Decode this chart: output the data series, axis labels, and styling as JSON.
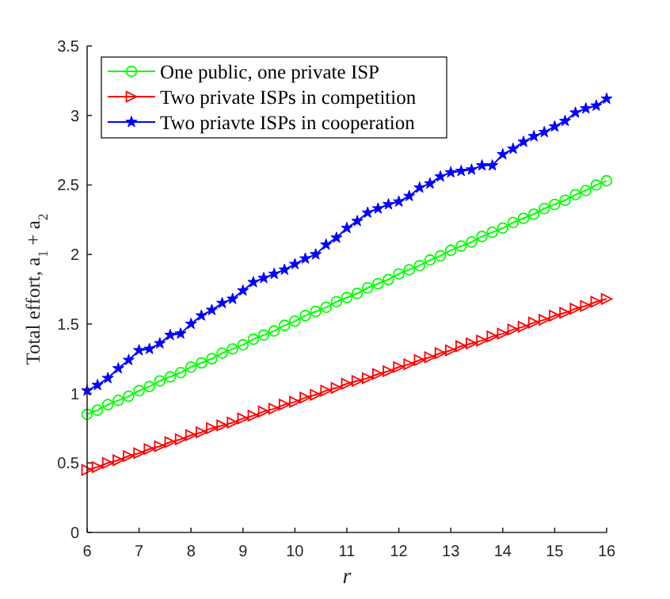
{
  "chart_data": {
    "type": "line",
    "xlabel": "r",
    "ylabel": "Total effort, a$_{1}$ + a$_{2}$",
    "x": [
      6,
      6.2,
      6.4,
      6.6,
      6.8,
      7,
      7.2,
      7.4,
      7.6,
      7.8,
      8,
      8.2,
      8.4,
      8.6,
      8.8,
      9,
      9.2,
      9.4,
      9.6,
      9.8,
      10,
      10.2,
      10.4,
      10.6,
      10.8,
      11,
      11.2,
      11.4,
      11.6,
      11.8,
      12,
      12.2,
      12.4,
      12.6,
      12.8,
      13,
      13.2,
      13.4,
      13.6,
      13.8,
      14,
      14.2,
      14.4,
      14.6,
      14.8,
      15,
      15.2,
      15.4,
      15.6,
      15.8,
      16
    ],
    "xlim": [
      6,
      16
    ],
    "xticks": [
      6,
      7,
      8,
      9,
      10,
      11,
      12,
      13,
      14,
      15,
      16
    ],
    "ylim": [
      0,
      3.5
    ],
    "yticks": [
      0,
      0.5,
      1,
      1.5,
      2,
      2.5,
      3,
      3.5
    ],
    "grid": false,
    "legend": "top left",
    "line_style": "solid",
    "series": [
      {
        "name": "One public, one private ISP",
        "color": "#00ff00",
        "marker": "circle",
        "values": [
          0.85,
          0.88,
          0.92,
          0.95,
          0.98,
          1.02,
          1.05,
          1.09,
          1.12,
          1.15,
          1.19,
          1.22,
          1.25,
          1.29,
          1.32,
          1.35,
          1.39,
          1.42,
          1.45,
          1.49,
          1.52,
          1.56,
          1.59,
          1.62,
          1.66,
          1.69,
          1.72,
          1.76,
          1.79,
          1.82,
          1.86,
          1.89,
          1.92,
          1.96,
          1.99,
          2.03,
          2.06,
          2.09,
          2.13,
          2.16,
          2.19,
          2.23,
          2.26,
          2.29,
          2.33,
          2.36,
          2.39,
          2.43,
          2.46,
          2.5,
          2.53
        ]
      },
      {
        "name": "Two private ISPs in competition",
        "color": "#ff0000",
        "marker": "triangle",
        "values": [
          0.45,
          0.47,
          0.5,
          0.52,
          0.55,
          0.57,
          0.6,
          0.62,
          0.65,
          0.67,
          0.7,
          0.72,
          0.75,
          0.77,
          0.79,
          0.82,
          0.84,
          0.87,
          0.89,
          0.92,
          0.94,
          0.97,
          0.99,
          1.02,
          1.04,
          1.07,
          1.09,
          1.11,
          1.14,
          1.16,
          1.19,
          1.21,
          1.24,
          1.26,
          1.29,
          1.31,
          1.34,
          1.36,
          1.38,
          1.41,
          1.43,
          1.46,
          1.48,
          1.51,
          1.53,
          1.56,
          1.58,
          1.61,
          1.63,
          1.66,
          1.68
        ]
      },
      {
        "name": "Two priavte ISPs in cooperation",
        "color": "#0000ff",
        "marker": "star",
        "values": [
          1.02,
          1.06,
          1.11,
          1.18,
          1.24,
          1.31,
          1.32,
          1.36,
          1.42,
          1.43,
          1.5,
          1.56,
          1.6,
          1.65,
          1.68,
          1.74,
          1.8,
          1.83,
          1.86,
          1.89,
          1.93,
          1.97,
          2.0,
          2.07,
          2.12,
          2.19,
          2.24,
          2.3,
          2.33,
          2.36,
          2.38,
          2.42,
          2.48,
          2.51,
          2.56,
          2.59,
          2.6,
          2.61,
          2.64,
          2.64,
          2.72,
          2.76,
          2.81,
          2.85,
          2.88,
          2.92,
          2.96,
          3.02,
          3.05,
          3.07,
          3.12
        ]
      }
    ]
  }
}
